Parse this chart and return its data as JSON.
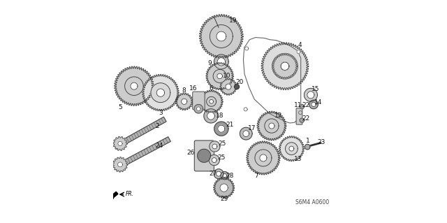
{
  "bg_color": "#ffffff",
  "diagram_code": "S6M4 A0600",
  "label_color": "#111111",
  "line_color": "#222222",
  "gear_fill": "#cccccc",
  "gear_edge": "#333333"
}
